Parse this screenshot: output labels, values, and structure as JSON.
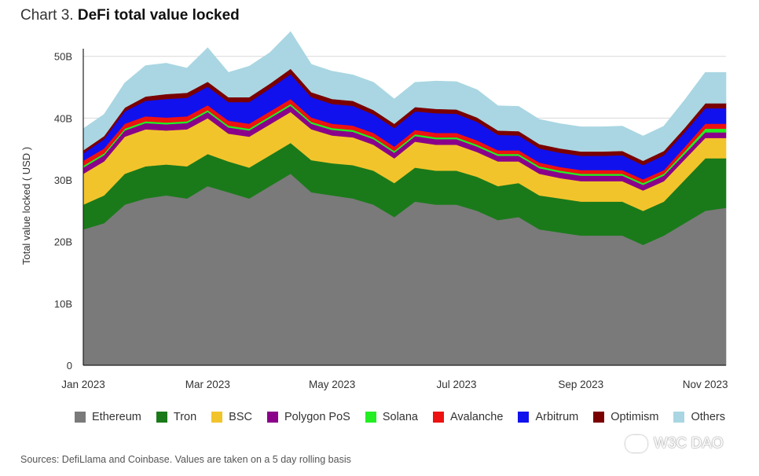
{
  "title": {
    "prefix": "Chart 3.",
    "main": "DeFi total value locked"
  },
  "source": "Sources: DefiLlama and Coinbase. Values are taken on a 5 day rolling basis",
  "watermark": "W3C DAO",
  "chart_data": {
    "type": "area",
    "stacked": true,
    "ylabel": "Total value locked ( USD )",
    "xlabel": "",
    "ylim": [
      0,
      52
    ],
    "yticks": [
      {
        "v": 0,
        "label": "0"
      },
      {
        "v": 10,
        "label": "10B"
      },
      {
        "v": 20,
        "label": "20B"
      },
      {
        "v": 30,
        "label": "30B"
      },
      {
        "v": 40,
        "label": "40B"
      },
      {
        "v": 50,
        "label": "50B"
      }
    ],
    "xticks": [
      {
        "i": 0,
        "label": "Jan 2023"
      },
      {
        "i": 6,
        "label": "Mar 2023"
      },
      {
        "i": 12,
        "label": "May 2023"
      },
      {
        "i": 18,
        "label": "Jul 2023"
      },
      {
        "i": 24,
        "label": "Sep 2023"
      },
      {
        "i": 30,
        "label": "Nov 2023"
      }
    ],
    "x": [
      "2023-01-01",
      "2023-01-15",
      "2023-02-01",
      "2023-02-15",
      "2023-03-01",
      "2023-03-15",
      "2023-03-01b",
      "2023-03-15b",
      "2023-04-01",
      "2023-04-15",
      "2023-04-22",
      "2023-05-01",
      "2023-05-15",
      "2023-05-22",
      "2023-06-01",
      "2023-06-10",
      "2023-06-20",
      "2023-07-01",
      "2023-07-08",
      "2023-07-20",
      "2023-08-01",
      "2023-08-10",
      "2023-08-20",
      "2023-09-01",
      "2023-09-08",
      "2023-09-20",
      "2023-10-01",
      "2023-10-10",
      "2023-10-20",
      "2023-11-01",
      "2023-11-08",
      "2023-11-20"
    ],
    "grid": true,
    "series": [
      {
        "name": "Ethereum",
        "color": "#7a7a7a",
        "values": [
          22,
          23,
          26,
          27,
          27.5,
          27,
          29,
          28,
          27,
          29,
          31,
          28,
          27.5,
          27,
          26,
          24,
          26.5,
          26,
          26,
          25,
          23.5,
          24,
          22,
          21.5,
          21,
          21,
          21,
          19.5,
          21,
          23,
          25,
          25.5
        ]
      },
      {
        "name": "Tron",
        "color": "#1a7a1a",
        "values": [
          4,
          4.5,
          5,
          5.2,
          5,
          5.2,
          5.2,
          5,
          5,
          5,
          5,
          5.2,
          5.2,
          5.4,
          5.5,
          5.5,
          5.5,
          5.5,
          5.5,
          5.5,
          5.5,
          5.5,
          5.5,
          5.5,
          5.5,
          5.5,
          5.5,
          5.5,
          5.5,
          7,
          8.5,
          8
        ]
      },
      {
        "name": "BSC",
        "color": "#f2c42c",
        "values": [
          5,
          5.5,
          6,
          6,
          5.5,
          6,
          5.8,
          4.5,
          5,
          5,
          5,
          5,
          4.5,
          4.5,
          4.2,
          4,
          4.2,
          4.2,
          4.2,
          4,
          4,
          3.5,
          3.5,
          3.3,
          3.3,
          3.3,
          3.3,
          3.3,
          3.3,
          3.3,
          3.3,
          3.3
        ]
      },
      {
        "name": "Polygon PoS",
        "color": "#8a008a",
        "values": [
          1,
          1,
          1,
          1,
          1,
          1,
          1,
          1,
          1,
          1,
          1,
          0.9,
          0.9,
          0.9,
          0.9,
          0.9,
          0.9,
          0.9,
          0.9,
          0.9,
          0.9,
          0.9,
          0.9,
          0.9,
          0.9,
          0.9,
          0.9,
          0.9,
          0.9,
          0.9,
          0.9,
          0.9
        ]
      },
      {
        "name": "Solana",
        "color": "#22ee22",
        "values": [
          0.3,
          0.3,
          0.3,
          0.3,
          0.3,
          0.3,
          0.3,
          0.3,
          0.3,
          0.3,
          0.3,
          0.3,
          0.3,
          0.3,
          0.3,
          0.3,
          0.3,
          0.3,
          0.3,
          0.3,
          0.3,
          0.3,
          0.3,
          0.3,
          0.3,
          0.3,
          0.3,
          0.3,
          0.3,
          0.4,
          0.6,
          0.6
        ]
      },
      {
        "name": "Avalanche",
        "color": "#ee1111",
        "values": [
          0.8,
          0.8,
          0.8,
          0.8,
          0.8,
          0.8,
          0.8,
          0.8,
          0.8,
          0.8,
          0.8,
          0.7,
          0.7,
          0.7,
          0.7,
          0.7,
          0.7,
          0.7,
          0.7,
          0.7,
          0.6,
          0.6,
          0.6,
          0.6,
          0.6,
          0.6,
          0.6,
          0.6,
          0.6,
          0.7,
          0.8,
          0.8
        ]
      },
      {
        "name": "Arbitrum",
        "color": "#1111ee",
        "values": [
          1.2,
          1.5,
          2,
          2.5,
          3,
          3,
          3,
          3,
          3.5,
          3.7,
          4,
          3.3,
          3.2,
          3.2,
          3,
          3,
          3,
          3.2,
          3.1,
          3,
          2.5,
          2.4,
          2.3,
          2.3,
          2.3,
          2.3,
          2.4,
          2.3,
          2.4,
          2.4,
          2.5,
          2.5
        ]
      },
      {
        "name": "Optimism",
        "color": "#7a0000",
        "values": [
          0.5,
          0.5,
          0.6,
          0.7,
          0.8,
          0.8,
          0.8,
          0.8,
          0.8,
          0.8,
          0.9,
          0.8,
          0.8,
          0.8,
          0.7,
          0.7,
          0.7,
          0.7,
          0.7,
          0.7,
          0.7,
          0.7,
          0.7,
          0.7,
          0.7,
          0.7,
          0.7,
          0.7,
          0.7,
          0.7,
          0.8,
          0.8
        ]
      },
      {
        "name": "Others",
        "color": "#a9d6e2",
        "values": [
          3.5,
          3.5,
          4,
          5,
          5,
          4,
          5.5,
          4,
          5,
          5,
          6,
          4.5,
          4.5,
          4.2,
          4.5,
          4,
          4,
          4.5,
          4.5,
          4.5,
          4,
          4,
          4,
          4,
          4,
          4,
          4,
          4,
          4,
          4.5,
          5,
          5
        ]
      }
    ]
  }
}
